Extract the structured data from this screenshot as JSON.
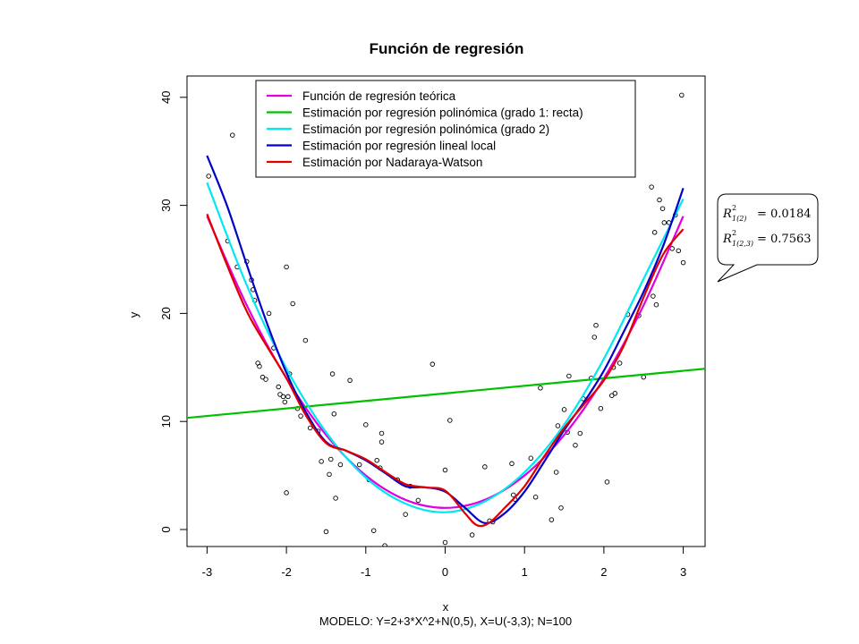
{
  "chart_data": {
    "type": "scatter",
    "title": "Función de regresión",
    "xlabel": "x",
    "ylabel": "y",
    "subtitle": "MODELO: Y=2+3*X^2+N(0,5), X=U(-3,3);  N=100",
    "xlim": [
      -3.3,
      3.3
    ],
    "ylim": [
      -1.6,
      41.5
    ],
    "xticks": [
      -3,
      -2,
      -1,
      0,
      1,
      2,
      3
    ],
    "yticks": [
      0,
      10,
      20,
      30,
      40
    ],
    "grid": false,
    "legend_position": "top",
    "points": {
      "x": [
        -2.98,
        -2.74,
        -2.68,
        -2.62,
        -2.5,
        -2.44,
        -2.42,
        -2.4,
        -2.36,
        -2.34,
        -2.3,
        -2.26,
        -2.22,
        -2.16,
        -2.1,
        -2.08,
        -2.04,
        -2.02,
        -2.0,
        -2.0,
        -1.98,
        -1.96,
        -1.92,
        -1.86,
        -1.82,
        -1.76,
        -1.7,
        -1.6,
        -1.56,
        -1.5,
        -1.46,
        -1.44,
        -1.42,
        -1.4,
        -1.38,
        -1.32,
        -1.2,
        -1.08,
        -1.0,
        -0.96,
        -0.9,
        -0.86,
        -0.82,
        -0.8,
        -0.8,
        -0.76,
        -0.6,
        -0.5,
        -0.44,
        -0.34,
        -0.16,
        0.0,
        0.0,
        0.06,
        0.34,
        0.5,
        0.56,
        0.6,
        0.84,
        0.86,
        0.88,
        1.08,
        1.14,
        1.2,
        1.34,
        1.4,
        1.42,
        1.46,
        1.5,
        1.54,
        1.56,
        1.64,
        1.7,
        1.74,
        1.84,
        1.88,
        1.9,
        1.96,
        2.04,
        2.1,
        2.12,
        2.14,
        2.2,
        2.3,
        2.44,
        2.5,
        2.6,
        2.62,
        2.64,
        2.66,
        2.7,
        2.74,
        2.76,
        2.82,
        2.86,
        2.9,
        2.94,
        2.98,
        3.0
      ],
      "y": [
        32.7,
        26.7,
        36.5,
        24.3,
        24.8,
        23.1,
        22.2,
        21.2,
        15.4,
        15.1,
        14.1,
        13.9,
        20.0,
        16.8,
        13.2,
        12.5,
        12.3,
        11.8,
        3.4,
        24.3,
        12.3,
        14.4,
        20.9,
        11.2,
        10.5,
        17.5,
        9.4,
        9.1,
        6.3,
        -0.2,
        5.1,
        6.5,
        14.4,
        10.7,
        2.9,
        6.0,
        13.8,
        6.0,
        9.7,
        4.6,
        -0.1,
        6.4,
        5.7,
        8.1,
        8.9,
        -1.5,
        4.6,
        1.4,
        4.0,
        2.7,
        15.3,
        -1.2,
        5.5,
        10.1,
        -0.5,
        5.8,
        0.8,
        0.7,
        6.1,
        3.2,
        2.8,
        6.6,
        3.0,
        13.1,
        0.9,
        5.3,
        9.6,
        2.0,
        11.1,
        9.0,
        14.2,
        7.8,
        8.9,
        12.1,
        14.0,
        17.8,
        18.9,
        11.2,
        4.4,
        12.4,
        15.0,
        12.6,
        15.4,
        19.9,
        19.8,
        14.1,
        31.7,
        21.6,
        27.5,
        20.8,
        30.5,
        29.7,
        28.4,
        28.4,
        26.0,
        29.1,
        25.8,
        40.2,
        24.7
      ]
    },
    "series": [
      {
        "name": "Función de regresión teórica",
        "color": "#e000e0",
        "x": [
          -3,
          -2.5,
          -2,
          -1.5,
          -1,
          -0.5,
          0,
          0.5,
          1,
          1.5,
          2,
          2.5,
          3
        ],
        "y": [
          29,
          20.75,
          14,
          8.75,
          5,
          2.75,
          2,
          2.75,
          5,
          8.75,
          14,
          20.75,
          29
        ]
      },
      {
        "name": "Estimación por regresión polinómica (grado 1: recta)",
        "color": "#00c000",
        "x": [
          -3.3,
          3.3
        ],
        "y": [
          10.3,
          14.9
        ]
      },
      {
        "name": "Estimación por regresión polinómica (grado 2)",
        "color": "#00e8f0",
        "x": [
          -3,
          -2.5,
          -2,
          -1.5,
          -1,
          -0.5,
          0,
          0.5,
          1,
          1.5,
          2,
          2.5,
          3
        ],
        "y": [
          32.1,
          22.6,
          14.9,
          9.0,
          4.8,
          2.4,
          1.6,
          2.6,
          5.3,
          9.7,
          15.8,
          23.2,
          30.6
        ]
      },
      {
        "name": "Estimación por regresión lineal local",
        "color": "#0000c8",
        "x": [
          -3,
          -2.75,
          -2.5,
          -2.25,
          -2,
          -1.75,
          -1.5,
          -1.25,
          -1,
          -0.75,
          -0.5,
          -0.25,
          0,
          0.25,
          0.5,
          0.75,
          1,
          1.25,
          1.5,
          1.75,
          2,
          2.25,
          2.5,
          2.75,
          3
        ],
        "y": [
          34.6,
          30.0,
          24.5,
          19.2,
          14.5,
          10.8,
          8.1,
          7.3,
          6.4,
          5.2,
          4.0,
          3.9,
          3.5,
          2.0,
          0.6,
          1.5,
          3.5,
          6.3,
          9.2,
          11.8,
          14.7,
          18.3,
          22.0,
          26.3,
          31.6
        ]
      },
      {
        "name": "Estimación por Nadaraya-Watson",
        "color": "#e00000",
        "x": [
          -3,
          -2.75,
          -2.5,
          -2.25,
          -2,
          -1.75,
          -1.5,
          -1.25,
          -1,
          -0.75,
          -0.5,
          -0.25,
          0,
          0.25,
          0.4,
          0.55,
          0.75,
          1,
          1.25,
          1.5,
          1.75,
          2,
          2.25,
          2.5,
          2.75,
          3
        ],
        "y": [
          29.2,
          24.5,
          20.2,
          17.0,
          14.0,
          10.5,
          8.0,
          7.3,
          6.5,
          5.3,
          4.2,
          3.9,
          3.6,
          1.5,
          0.4,
          0.6,
          2.0,
          4.0,
          6.8,
          9.4,
          11.6,
          13.8,
          17.0,
          21.5,
          25.5,
          27.8
        ]
      }
    ],
    "annotation": {
      "lines": [
        {
          "symbol": "R",
          "sup": "2",
          "sub": "1(2)",
          "value": "= 0.0184"
        },
        {
          "symbol": "R",
          "sup": "2",
          "sub": "1(2,3)",
          "value": "= 0.7563"
        }
      ]
    }
  }
}
